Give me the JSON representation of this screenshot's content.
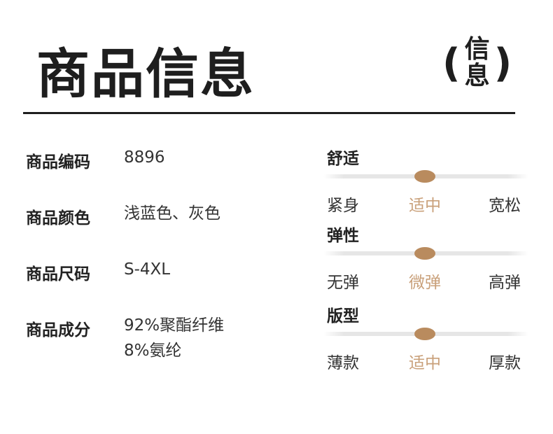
{
  "title": "商品信息",
  "title_side": {
    "open": "(",
    "chars": [
      "信",
      "息"
    ],
    "close": ")"
  },
  "details": [
    {
      "label": "商品编码",
      "value": [
        "8896"
      ]
    },
    {
      "label": "商品颜色",
      "value": [
        "浅蓝色、灰色"
      ]
    },
    {
      "label": "商品尺码",
      "value": [
        "S-4XL"
      ]
    },
    {
      "label": "商品成分",
      "value": [
        "92%聚酯纤维",
        "8%氨纶"
      ]
    }
  ],
  "accent": "#b98b5e",
  "scales": [
    {
      "name": "舒适",
      "options": [
        "紧身",
        "适中",
        "宽松"
      ],
      "selected_index": 1
    },
    {
      "name": "弹性",
      "options": [
        "无弹",
        "微弹",
        "高弹"
      ],
      "selected_index": 1
    },
    {
      "name": "版型",
      "options": [
        "薄款",
        "适中",
        "厚款"
      ],
      "selected_index": 1
    }
  ]
}
